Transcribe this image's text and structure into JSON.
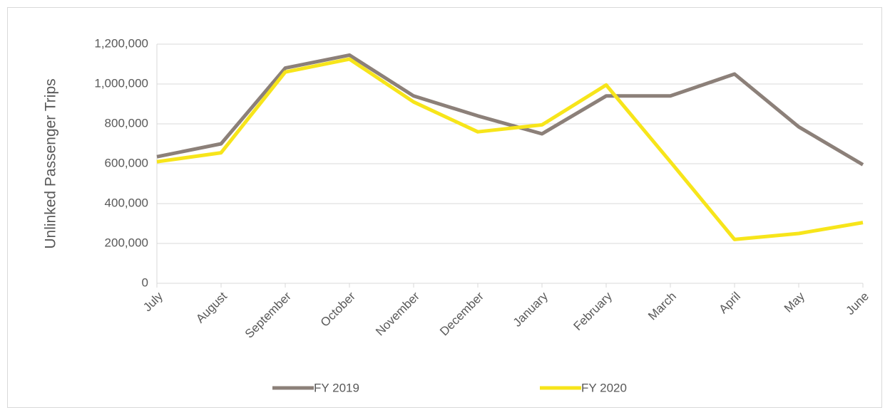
{
  "chart_data": {
    "type": "line",
    "y_label": "Unlinked Passenger Trips",
    "categories": [
      "July",
      "August",
      "September",
      "October",
      "November",
      "December",
      "January",
      "February",
      "March",
      "April",
      "May",
      "June"
    ],
    "series": [
      {
        "name": "FY 2019",
        "color": "#8c8079",
        "values": [
          635000,
          700000,
          1080000,
          1145000,
          940000,
          840000,
          750000,
          940000,
          940000,
          1050000,
          785000,
          595000
        ]
      },
      {
        "name": "FY 2020",
        "color": "#f7e51a",
        "values": [
          610000,
          655000,
          1060000,
          1125000,
          910000,
          760000,
          795000,
          995000,
          610000,
          220000,
          250000,
          305000
        ]
      }
    ],
    "ylim": [
      0,
      1200000
    ],
    "yticks": [
      0,
      {
        "value": 200000,
        "label": "200,000"
      },
      {
        "value": 400000,
        "label": "400,000"
      },
      {
        "value": 600000,
        "label": "600,000"
      },
      {
        "value": 800000,
        "label": "800,000"
      },
      {
        "value": 1000000,
        "label": "1,000,000"
      },
      {
        "value": 1200000,
        "label": "1,200,000"
      }
    ],
    "grid": true,
    "legend": "bottom"
  }
}
